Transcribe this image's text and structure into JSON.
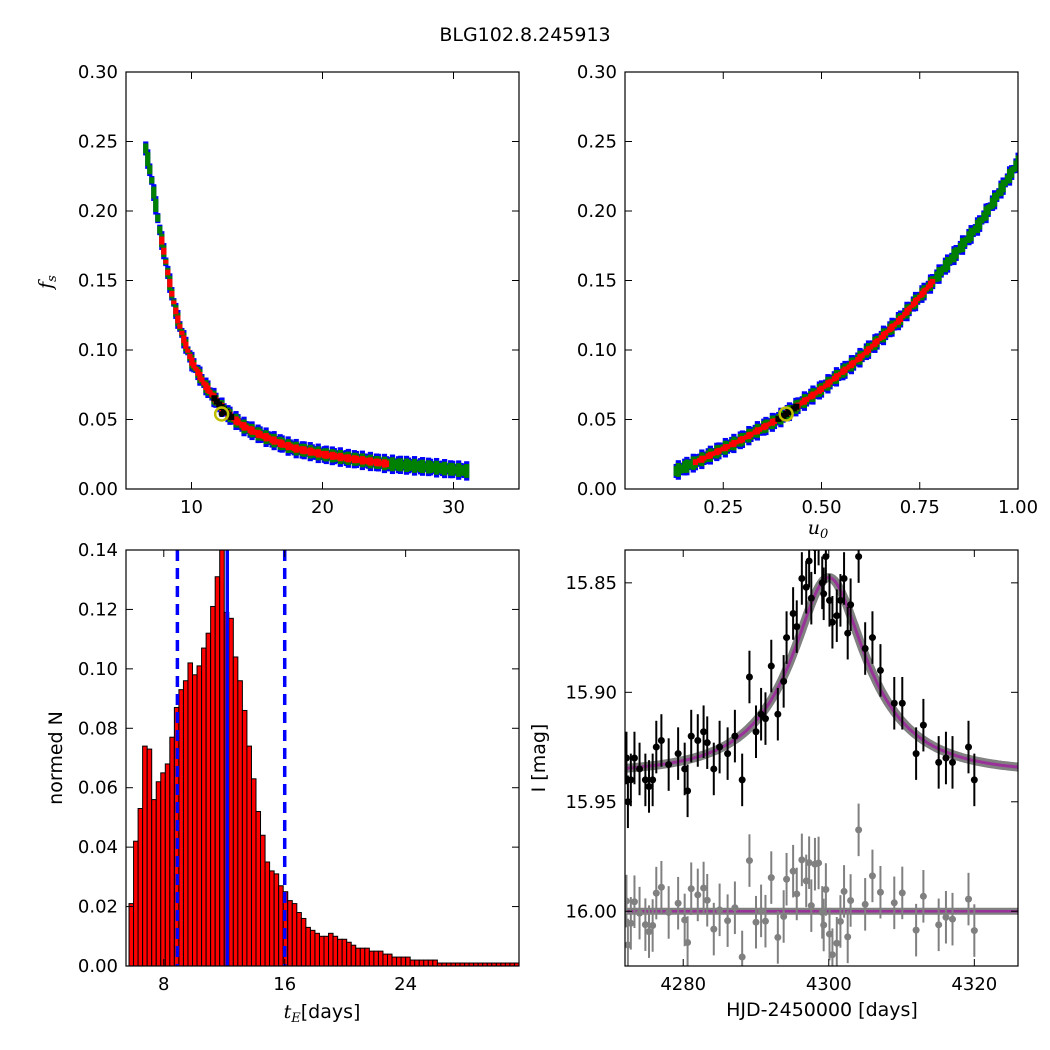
{
  "suptitle": "BLG102.8.245913",
  "colors": {
    "sigma3": "#0000ff",
    "sigma2": "#008000",
    "sigma1": "#ff0000",
    "best": "#000000",
    "marker_edge": "#bfbf00",
    "hist_bar": "#ff0000",
    "vline_median": "#0000ff",
    "vline_bounds": "#0000ff",
    "model": "#993399",
    "model_band": "#808080",
    "data": "#000000",
    "residuals": "#808080"
  },
  "chart_data": [
    {
      "type": "heatmap",
      "panel": "top-left",
      "xlabel": "",
      "ylabel": "f_s",
      "xlim": [
        5,
        35
      ],
      "ylim": [
        0.0,
        0.3
      ],
      "xticks": [
        "10",
        "20",
        "30"
      ],
      "yticks": [
        "0.00",
        "0.05",
        "0.10",
        "0.15",
        "0.20",
        "0.25",
        "0.30"
      ],
      "regions_description": "confidence contours: blue 3-sigma, green 2-sigma, red 1-sigma, black best",
      "band_ridge": {
        "x": [
          6.5,
          7.0,
          7.5,
          8.0,
          8.5,
          9.0,
          9.5,
          10.0,
          11.0,
          12.0,
          13.0,
          14.0,
          15.0,
          16.0,
          17.0,
          18.0,
          20.0,
          22.0,
          25.0,
          28.0,
          31.0
        ],
        "y": [
          0.245,
          0.22,
          0.19,
          0.165,
          0.14,
          0.12,
          0.105,
          0.092,
          0.075,
          0.062,
          0.052,
          0.045,
          0.04,
          0.036,
          0.032,
          0.029,
          0.025,
          0.022,
          0.018,
          0.016,
          0.013
        ]
      },
      "best_fit": {
        "x": 12.3,
        "y": 0.054
      }
    },
    {
      "type": "heatmap",
      "panel": "top-right",
      "xlabel": "u_0",
      "ylabel": "",
      "xlim": [
        0.0,
        1.0
      ],
      "ylim": [
        0.0,
        0.3
      ],
      "xticks": [
        "0.25",
        "0.50",
        "0.75",
        "1.00"
      ],
      "yticks": [
        "0.00",
        "0.05",
        "0.10",
        "0.15",
        "0.20",
        "0.25",
        "0.30"
      ],
      "band_ridge": {
        "x": [
          0.13,
          0.2,
          0.3,
          0.4,
          0.5,
          0.6,
          0.7,
          0.8,
          0.9,
          1.0
        ],
        "y": [
          0.013,
          0.022,
          0.036,
          0.052,
          0.072,
          0.095,
          0.122,
          0.155,
          0.19,
          0.235
        ]
      },
      "best_fit": {
        "x": 0.41,
        "y": 0.054
      }
    },
    {
      "type": "bar",
      "panel": "bottom-left",
      "xlabel": "t_E",
      "xlabel_unit": "[days]",
      "ylabel": "normed N",
      "xlim": [
        5.5,
        31.5
      ],
      "ylim": [
        0.0,
        0.14
      ],
      "xticks": [
        "8",
        "16",
        "24"
      ],
      "yticks": [
        "0.00",
        "0.02",
        "0.04",
        "0.06",
        "0.08",
        "0.10",
        "0.12",
        "0.14"
      ],
      "bin_width": 0.3,
      "bin_start": 5.7,
      "values": [
        0.021,
        0.042,
        0.053,
        0.074,
        0.073,
        0.056,
        0.062,
        0.065,
        0.068,
        0.077,
        0.087,
        0.093,
        0.096,
        0.102,
        0.098,
        0.101,
        0.107,
        0.112,
        0.121,
        0.131,
        0.14,
        0.119,
        0.117,
        0.104,
        0.096,
        0.086,
        0.074,
        0.063,
        0.052,
        0.044,
        0.035,
        0.032,
        0.031,
        0.027,
        0.025,
        0.022,
        0.021,
        0.018,
        0.016,
        0.013,
        0.012,
        0.011,
        0.01,
        0.01,
        0.011,
        0.01,
        0.009,
        0.009,
        0.008,
        0.007,
        0.006,
        0.006,
        0.006,
        0.005,
        0.005,
        0.005,
        0.004,
        0.004,
        0.003,
        0.003,
        0.003,
        0.003,
        0.002,
        0.002,
        0.002,
        0.002,
        0.002,
        0.002,
        0.001,
        0.001,
        0.001,
        0.001,
        0.001,
        0.001,
        0.001,
        0.001,
        0.001,
        0.001,
        0.001,
        0.001,
        0.001,
        0.001,
        0.001,
        0.001,
        0.001,
        0.001,
        0.001
      ],
      "vline_median": 12.2,
      "vline_bounds": [
        8.9,
        16.0
      ]
    },
    {
      "type": "scatter",
      "panel": "bottom-right",
      "xlabel": "HJD-2450000 [days]",
      "ylabel": "I [mag]",
      "xlim": [
        4272.0,
        4326.0
      ],
      "ylim": [
        16.025,
        15.835
      ],
      "xticks": [
        "4280",
        "4300",
        "4320"
      ],
      "yticks": [
        "15.85",
        "15.90",
        "15.95",
        "16.00"
      ],
      "model": {
        "t0": 4300.0,
        "tE": 12.3,
        "u0": 0.41,
        "fs": 0.054,
        "baseline": 15.937
      },
      "residual_offset": 15.992,
      "data_points": {
        "t": [
          4272.2,
          4272.4,
          4272.8,
          4273.3,
          4274.0,
          4274.8,
          4275.3,
          4275.8,
          4276.3,
          4277.0,
          4278.0,
          4279.3,
          4280.2,
          4280.6,
          4281.1,
          4282.0,
          4282.8,
          4283.3,
          4284.2,
          4285.0,
          4286.1,
          4287.1,
          4288.1,
          4289.1,
          4290.0,
          4290.7,
          4291.3,
          4292.1,
          4293.0,
          4293.8,
          4294.2,
          4295.1,
          4295.6,
          4296.3,
          4296.9,
          4297.3,
          4297.6,
          4298.1,
          4298.6,
          4299.1,
          4299.3,
          4299.6,
          4300.1,
          4300.5,
          4301.1,
          4301.6,
          4302.1,
          4302.6,
          4303.0,
          4304.1,
          4305.0,
          4306.0,
          4307.1,
          4309.0,
          4310.1,
          4312.0,
          4313.0,
          4315.1,
          4316.1,
          4317.0,
          4319.2,
          4320.0
        ],
        "mag": [
          15.93,
          15.95,
          15.94,
          15.93,
          15.935,
          15.94,
          15.943,
          15.94,
          15.925,
          15.922,
          15.933,
          15.928,
          15.935,
          15.945,
          15.92,
          15.922,
          15.918,
          15.923,
          15.935,
          15.925,
          15.928,
          15.92,
          15.94,
          15.893,
          15.918,
          15.91,
          15.912,
          15.888,
          15.91,
          15.895,
          15.875,
          15.864,
          15.87,
          15.848,
          15.852,
          15.84,
          15.857,
          15.834,
          15.83,
          15.85,
          15.855,
          15.838,
          15.858,
          15.868,
          15.865,
          15.858,
          15.848,
          15.873,
          15.86,
          15.838,
          15.88,
          15.875,
          15.89,
          15.905,
          15.905,
          15.928,
          15.915,
          15.932,
          15.93,
          15.932,
          15.925,
          15.94
        ],
        "err": [
          0.012,
          0.012,
          0.012,
          0.012,
          0.012,
          0.012,
          0.012,
          0.012,
          0.012,
          0.012,
          0.012,
          0.012,
          0.012,
          0.012,
          0.012,
          0.012,
          0.012,
          0.012,
          0.012,
          0.012,
          0.012,
          0.012,
          0.012,
          0.012,
          0.012,
          0.012,
          0.012,
          0.012,
          0.012,
          0.012,
          0.012,
          0.012,
          0.012,
          0.012,
          0.012,
          0.012,
          0.012,
          0.012,
          0.012,
          0.012,
          0.012,
          0.012,
          0.012,
          0.012,
          0.012,
          0.012,
          0.012,
          0.012,
          0.012,
          0.012,
          0.012,
          0.012,
          0.012,
          0.012,
          0.012,
          0.012,
          0.012,
          0.012,
          0.012,
          0.012,
          0.012,
          0.012
        ]
      }
    }
  ]
}
